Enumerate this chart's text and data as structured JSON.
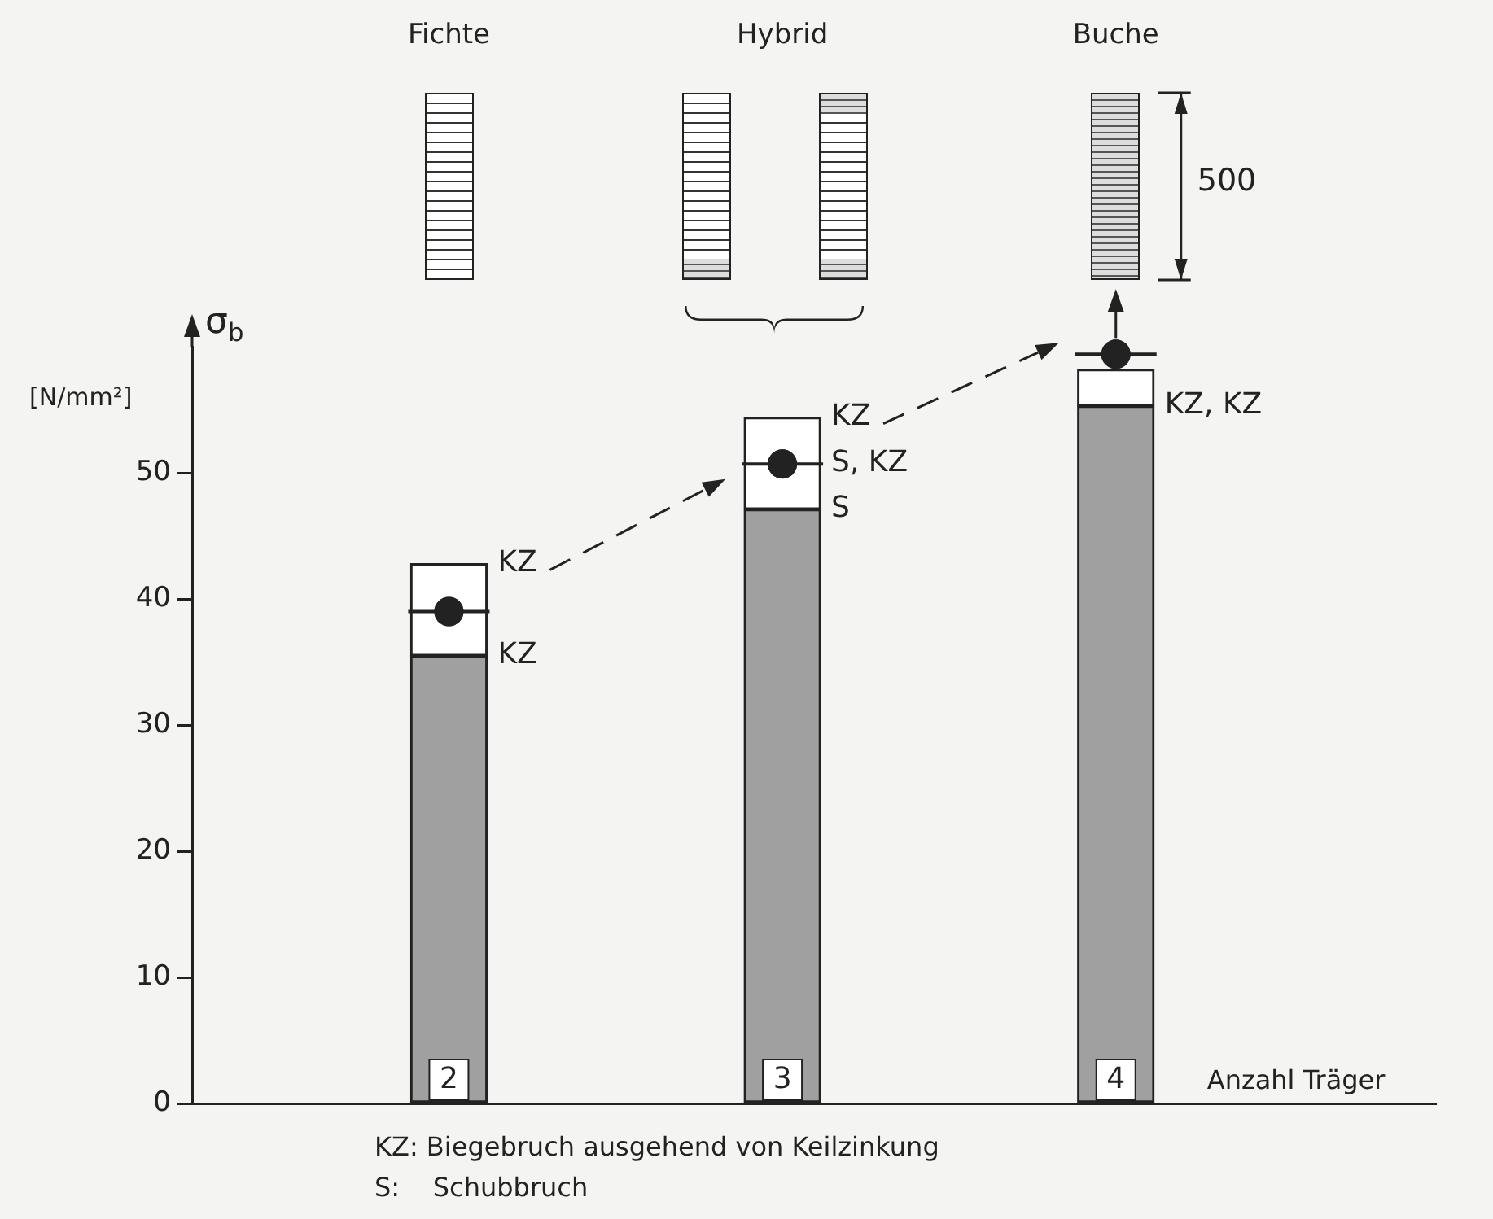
{
  "chart_data": {
    "type": "bar",
    "stacked": true,
    "categories": [
      "2",
      "3",
      "4"
    ],
    "xlabel": "Anzahl Träger",
    "ylabel": "σ$_{b}$",
    "ylim": [
      0,
      60
    ],
    "yticks": [
      0,
      10,
      20,
      30,
      40,
      50
    ],
    "grid": false,
    "legend": false,
    "series": [
      {
        "color": "#a0a0a0",
        "values": [
          35.5,
          47.1,
          55.3
        ]
      },
      {
        "color": "#ffffff",
        "values": [
          7.3,
          7.3,
          2.9
        ]
      },
      {
        "type": "scatter",
        "marker": "circle",
        "color": "#222222",
        "x": [
          "2",
          "3",
          "4"
        ],
        "values": [
          39.0,
          50.7,
          59.4
        ]
      }
    ],
    "annotations": [
      {
        "text": "KZ",
        "x": "2",
        "y": 42.8
      },
      {
        "text": "KZ",
        "x": "2",
        "y": 35.5
      },
      {
        "text": "KZ",
        "x": "3",
        "y": 54.4
      },
      {
        "text": "S, KZ",
        "x": "3",
        "y": 50.7
      },
      {
        "text": "S",
        "x": "3",
        "y": 47.1
      },
      {
        "text": "KZ, KZ",
        "x": "4",
        "y": 55.3
      },
      "Fichte",
      "Hybrid",
      "Buche",
      "500",
      "[N/mm²]",
      "KZ: Biegebruch ausgehend von Keilzinkung",
      "S:    Schubbruch"
    ]
  }
}
